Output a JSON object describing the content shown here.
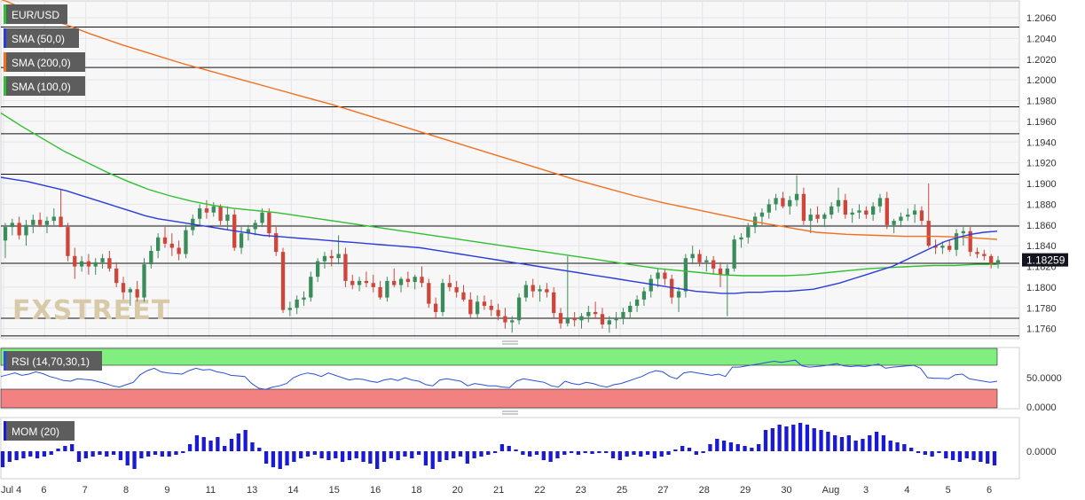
{
  "chart_data": {
    "type": "candlestick",
    "symbol": "EUR/USD",
    "indicators": {
      "sma50": {
        "label": "SMA (50,0)",
        "color": "#2b3bd9"
      },
      "sma200": {
        "label": "SMA (200,0)",
        "color": "#f07020"
      },
      "sma100": {
        "label": "SMA (100,0)",
        "color": "#2fbf2f"
      },
      "rsi": {
        "label": "RSI (14,70,30,1)",
        "color": "#2b4fd6",
        "overbought": 70,
        "oversold": 30,
        "ticks": [
          "50.0000",
          "0.0000"
        ]
      },
      "mom": {
        "label": "MOM (20)",
        "color": "#1a1ad6",
        "ticks": [
          "0.0000"
        ]
      }
    },
    "y_ticks": [
      "1.2060",
      "1.2040",
      "1.2020",
      "1.2000",
      "1.1980",
      "1.1960",
      "1.1940",
      "1.1920",
      "1.1900",
      "1.1880",
      "1.1860",
      "1.1840",
      "1.1820",
      "1.1800",
      "1.1780",
      "1.1760"
    ],
    "ylim": [
      1.1752,
      1.2072
    ],
    "last_price": "1.18259",
    "horizontal_levels": [
      1.2051,
      1.2012,
      1.1974,
      1.1948,
      1.1909,
      1.1859,
      1.1823,
      1.177,
      1.1753
    ],
    "x_labels": [
      "Jul 4",
      "6",
      "7",
      "8",
      "9",
      "11",
      "13",
      "14",
      "15",
      "16",
      "18",
      "20",
      "21",
      "22",
      "23",
      "25",
      "27",
      "28",
      "29",
      "30",
      "Aug",
      "3",
      "4",
      "5",
      "6"
    ],
    "candles": [
      [
        1.1845,
        1.1862,
        1.1828,
        1.1858
      ],
      [
        1.1858,
        1.1866,
        1.185,
        1.1862
      ],
      [
        1.1862,
        1.1868,
        1.1846,
        1.185
      ],
      [
        1.185,
        1.1865,
        1.184,
        1.186
      ],
      [
        1.186,
        1.187,
        1.1852,
        1.1865
      ],
      [
        1.1865,
        1.1872,
        1.1858,
        1.186
      ],
      [
        1.186,
        1.1868,
        1.1852,
        1.1864
      ],
      [
        1.1864,
        1.1876,
        1.186,
        1.1868
      ],
      [
        1.1868,
        1.1895,
        1.186,
        1.1858
      ],
      [
        1.1858,
        1.1862,
        1.1825,
        1.183
      ],
      [
        1.183,
        1.1838,
        1.1808,
        1.182
      ],
      [
        1.182,
        1.183,
        1.1815,
        1.1825
      ],
      [
        1.1825,
        1.1832,
        1.1812,
        1.182
      ],
      [
        1.182,
        1.1828,
        1.1812,
        1.1824
      ],
      [
        1.1824,
        1.1832,
        1.1818,
        1.1828
      ],
      [
        1.1828,
        1.1835,
        1.1815,
        1.1818
      ],
      [
        1.1818,
        1.1824,
        1.18,
        1.1804
      ],
      [
        1.1804,
        1.181,
        1.1788,
        1.1795
      ],
      [
        1.1795,
        1.18,
        1.1782,
        1.1798
      ],
      [
        1.1798,
        1.1806,
        1.1786,
        1.179
      ],
      [
        1.179,
        1.1828,
        1.1786,
        1.1822
      ],
      [
        1.1822,
        1.184,
        1.1818,
        1.1835
      ],
      [
        1.1835,
        1.1852,
        1.1828,
        1.1848
      ],
      [
        1.1848,
        1.1858,
        1.1838,
        1.1842
      ],
      [
        1.1842,
        1.1852,
        1.183,
        1.1838
      ],
      [
        1.1838,
        1.1845,
        1.1826,
        1.1832
      ],
      [
        1.1832,
        1.186,
        1.1828,
        1.1855
      ],
      [
        1.1855,
        1.187,
        1.185,
        1.1866
      ],
      [
        1.1866,
        1.188,
        1.186,
        1.1876
      ],
      [
        1.1876,
        1.1884,
        1.1866,
        1.1872
      ],
      [
        1.1872,
        1.1882,
        1.1868,
        1.1878
      ],
      [
        1.1878,
        1.188,
        1.186,
        1.1864
      ],
      [
        1.1864,
        1.1878,
        1.1855,
        1.187
      ],
      [
        1.187,
        1.1875,
        1.1835,
        1.1838
      ],
      [
        1.1838,
        1.1858,
        1.1832,
        1.1852
      ],
      [
        1.1852,
        1.186,
        1.1845,
        1.1856
      ],
      [
        1.1856,
        1.1865,
        1.185,
        1.1862
      ],
      [
        1.1862,
        1.1876,
        1.1858,
        1.1872
      ],
      [
        1.1872,
        1.1876,
        1.1848,
        1.1852
      ],
      [
        1.1852,
        1.1858,
        1.183,
        1.1834
      ],
      [
        1.1834,
        1.1838,
        1.1775,
        1.1778
      ],
      [
        1.1778,
        1.1786,
        1.1772,
        1.178
      ],
      [
        1.178,
        1.1792,
        1.1774,
        1.1788
      ],
      [
        1.1788,
        1.1796,
        1.1782,
        1.179
      ],
      [
        1.179,
        1.1815,
        1.1786,
        1.181
      ],
      [
        1.181,
        1.1828,
        1.1805,
        1.1825
      ],
      [
        1.1825,
        1.1834,
        1.1818,
        1.183
      ],
      [
        1.183,
        1.1836,
        1.182,
        1.1828
      ],
      [
        1.1828,
        1.185,
        1.1822,
        1.1832
      ],
      [
        1.1832,
        1.1838,
        1.18,
        1.1806
      ],
      [
        1.1806,
        1.1812,
        1.1798,
        1.1802
      ],
      [
        1.1802,
        1.181,
        1.1796,
        1.1806
      ],
      [
        1.1806,
        1.1815,
        1.18,
        1.1804
      ],
      [
        1.1804,
        1.1812,
        1.1795,
        1.18
      ],
      [
        1.18,
        1.1806,
        1.1788,
        1.179
      ],
      [
        1.179,
        1.181,
        1.1786,
        1.1806
      ],
      [
        1.1806,
        1.1818,
        1.18,
        1.1802
      ],
      [
        1.1802,
        1.181,
        1.1795,
        1.1808
      ],
      [
        1.1808,
        1.1815,
        1.18,
        1.1805
      ],
      [
        1.1805,
        1.1812,
        1.1798,
        1.181
      ],
      [
        1.181,
        1.182,
        1.18,
        1.1804
      ],
      [
        1.1804,
        1.1808,
        1.178,
        1.1784
      ],
      [
        1.1784,
        1.179,
        1.177,
        1.1776
      ],
      [
        1.1776,
        1.1808,
        1.1772,
        1.1804
      ],
      [
        1.1804,
        1.1812,
        1.1796,
        1.18
      ],
      [
        1.18,
        1.1806,
        1.179,
        1.1795
      ],
      [
        1.1795,
        1.1802,
        1.1786,
        1.1788
      ],
      [
        1.1788,
        1.1795,
        1.177,
        1.1774
      ],
      [
        1.1774,
        1.1792,
        1.177,
        1.1786
      ],
      [
        1.1786,
        1.1792,
        1.1778,
        1.1782
      ],
      [
        1.1782,
        1.1788,
        1.1772,
        1.1778
      ],
      [
        1.1778,
        1.1784,
        1.1768,
        1.1772
      ],
      [
        1.1772,
        1.178,
        1.176,
        1.1766
      ],
      [
        1.1766,
        1.1772,
        1.1756,
        1.1768
      ],
      [
        1.1768,
        1.1794,
        1.1764,
        1.179
      ],
      [
        1.179,
        1.1806,
        1.1786,
        1.1802
      ],
      [
        1.1802,
        1.1808,
        1.179,
        1.1796
      ],
      [
        1.1796,
        1.1802,
        1.1786,
        1.1798
      ],
      [
        1.1798,
        1.1804,
        1.179,
        1.1795
      ],
      [
        1.1795,
        1.18,
        1.177,
        1.1775
      ],
      [
        1.1775,
        1.178,
        1.176,
        1.1765
      ],
      [
        1.1765,
        1.183,
        1.1762,
        1.177
      ],
      [
        1.177,
        1.1776,
        1.1762,
        1.1768
      ],
      [
        1.1768,
        1.1775,
        1.176,
        1.1772
      ],
      [
        1.1772,
        1.1782,
        1.1766,
        1.1776
      ],
      [
        1.1776,
        1.1786,
        1.177,
        1.1774
      ],
      [
        1.1774,
        1.178,
        1.176,
        1.1764
      ],
      [
        1.1764,
        1.1772,
        1.1756,
        1.1768
      ],
      [
        1.1768,
        1.1776,
        1.176,
        1.177
      ],
      [
        1.177,
        1.178,
        1.1764,
        1.1776
      ],
      [
        1.1776,
        1.1786,
        1.177,
        1.1782
      ],
      [
        1.1782,
        1.1792,
        1.1776,
        1.1788
      ],
      [
        1.1788,
        1.18,
        1.1782,
        1.1796
      ],
      [
        1.1796,
        1.1812,
        1.179,
        1.1808
      ],
      [
        1.1808,
        1.1818,
        1.18,
        1.1814
      ],
      [
        1.1814,
        1.1818,
        1.1802,
        1.1808
      ],
      [
        1.1808,
        1.1812,
        1.1784,
        1.179
      ],
      [
        1.179,
        1.18,
        1.1776,
        1.1796
      ],
      [
        1.1796,
        1.1832,
        1.179,
        1.1828
      ],
      [
        1.1828,
        1.184,
        1.1822,
        1.1832
      ],
      [
        1.1832,
        1.1836,
        1.182,
        1.1824
      ],
      [
        1.1824,
        1.183,
        1.1815,
        1.1826
      ],
      [
        1.1826,
        1.183,
        1.1812,
        1.1818
      ],
      [
        1.1818,
        1.1824,
        1.18,
        1.1812
      ],
      [
        1.1812,
        1.1822,
        1.1772,
        1.1818
      ],
      [
        1.1818,
        1.185,
        1.1815,
        1.1846
      ],
      [
        1.1846,
        1.1852,
        1.1838,
        1.1848
      ],
      [
        1.1848,
        1.1862,
        1.1842,
        1.1858
      ],
      [
        1.1858,
        1.1872,
        1.1852,
        1.1868
      ],
      [
        1.1868,
        1.1876,
        1.186,
        1.1872
      ],
      [
        1.1872,
        1.1885,
        1.1866,
        1.188
      ],
      [
        1.188,
        1.189,
        1.1874,
        1.1886
      ],
      [
        1.1886,
        1.1892,
        1.1876,
        1.1878
      ],
      [
        1.1878,
        1.1888,
        1.187,
        1.1884
      ],
      [
        1.1884,
        1.1908,
        1.1878,
        1.189
      ],
      [
        1.189,
        1.1896,
        1.186,
        1.1864
      ],
      [
        1.1864,
        1.1876,
        1.1852,
        1.187
      ],
      [
        1.187,
        1.1878,
        1.1862,
        1.1866
      ],
      [
        1.1866,
        1.1872,
        1.1858,
        1.187
      ],
      [
        1.187,
        1.1882,
        1.1866,
        1.1878
      ],
      [
        1.1878,
        1.1896,
        1.1872,
        1.1884
      ],
      [
        1.1884,
        1.189,
        1.1866,
        1.187
      ],
      [
        1.187,
        1.1876,
        1.1862,
        1.1872
      ],
      [
        1.1872,
        1.188,
        1.1866,
        1.1874
      ],
      [
        1.1874,
        1.1878,
        1.1866,
        1.187
      ],
      [
        1.187,
        1.1882,
        1.1864,
        1.1878
      ],
      [
        1.1878,
        1.189,
        1.1872,
        1.1886
      ],
      [
        1.1886,
        1.1892,
        1.1856,
        1.186
      ],
      [
        1.186,
        1.1866,
        1.1852,
        1.1864
      ],
      [
        1.1864,
        1.1872,
        1.1858,
        1.1868
      ],
      [
        1.1868,
        1.1876,
        1.1864,
        1.187
      ],
      [
        1.187,
        1.188,
        1.1862,
        1.1874
      ],
      [
        1.1874,
        1.1878,
        1.186,
        1.1864
      ],
      [
        1.1864,
        1.19,
        1.1838,
        1.184
      ],
      [
        1.184,
        1.1846,
        1.1832,
        1.1838
      ],
      [
        1.1838,
        1.1844,
        1.1832,
        1.184
      ],
      [
        1.184,
        1.1846,
        1.1834,
        1.1836
      ],
      [
        1.1836,
        1.1856,
        1.183,
        1.1852
      ],
      [
        1.1852,
        1.1858,
        1.184,
        1.1854
      ],
      [
        1.1854,
        1.1858,
        1.183,
        1.1834
      ],
      [
        1.1834,
        1.1838,
        1.1828,
        1.1832
      ],
      [
        1.1832,
        1.1836,
        1.1826,
        1.183
      ],
      [
        1.183,
        1.1832,
        1.1818,
        1.1822
      ],
      [
        1.1822,
        1.183,
        1.1818,
        1.1826
      ]
    ],
    "sma50_values": [
      1.1906,
      1.1904,
      1.1902,
      1.1899,
      1.1896,
      1.1893,
      1.1889,
      1.1885,
      1.1881,
      1.1877,
      1.1873,
      1.1869,
      1.1866,
      1.1864,
      1.1862,
      1.186,
      1.1858,
      1.1856,
      1.1854,
      1.1852,
      1.185,
      1.1849,
      1.1848,
      1.1847,
      1.1846,
      1.1845,
      1.1844,
      1.1843,
      1.1842,
      1.1841,
      1.184,
      1.1839,
      1.1838,
      1.1836,
      1.1834,
      1.1832,
      1.183,
      1.1828,
      1.1826,
      1.1824,
      1.1822,
      1.182,
      1.1818,
      1.1816,
      1.1814,
      1.1812,
      1.181,
      1.1808,
      1.1806,
      1.1804,
      1.1802,
      1.18,
      1.1798,
      1.1796,
      1.1795,
      1.1794,
      1.1794,
      1.1795,
      1.1795,
      1.1796,
      1.1796,
      1.1797,
      1.1798,
      1.1801,
      1.1804,
      1.1808,
      1.1812,
      1.1816,
      1.182,
      1.1826,
      1.1832,
      1.1838,
      1.1844,
      1.1848,
      1.1851,
      1.1853,
      1.1854
    ],
    "sma200_values": [
      1.2078,
      1.2066,
      1.2055,
      1.2044,
      1.2034,
      1.2025,
      1.2016,
      1.2008,
      1.2,
      1.1992,
      1.1984,
      1.1976,
      1.1967,
      1.1958,
      1.1949,
      1.194,
      1.1931,
      1.1922,
      1.1913,
      1.1904,
      1.1896,
      1.1888,
      1.1881,
      1.1875,
      1.1869,
      1.1863,
      1.1858,
      1.1853,
      1.1851,
      1.185,
      1.1849,
      1.1849,
      1.1848,
      1.1846
    ],
    "sma100_values": [
      1.1968,
      1.1955,
      1.1943,
      1.1931,
      1.1921,
      1.1911,
      1.1902,
      1.1894,
      1.1888,
      1.1883,
      1.1879,
      1.1876,
      1.1874,
      1.1872,
      1.1869,
      1.1866,
      1.1863,
      1.186,
      1.1857,
      1.1854,
      1.1851,
      1.1848,
      1.1845,
      1.1842,
      1.1839,
      1.1836,
      1.1833,
      1.183,
      1.1827,
      1.1824,
      1.1821,
      1.1818,
      1.1816,
      1.1814,
      1.1812,
      1.1811,
      1.1811,
      1.1811,
      1.1812,
      1.1814,
      1.1816,
      1.1818,
      1.1819,
      1.182,
      1.1821,
      1.1821,
      1.1822,
      1.1822
    ],
    "rsi_values": [
      52,
      55,
      58,
      54,
      56,
      60,
      57,
      52,
      49,
      45,
      44,
      48,
      47,
      46,
      43,
      40,
      36,
      34,
      38,
      42,
      55,
      62,
      66,
      60,
      58,
      57,
      56,
      62,
      66,
      63,
      64,
      60,
      58,
      54,
      53,
      52,
      40,
      32,
      30,
      34,
      36,
      40,
      50,
      55,
      58,
      56,
      52,
      58,
      54,
      50,
      46,
      48,
      47,
      44,
      42,
      46,
      48,
      45,
      50,
      46,
      44,
      38,
      36,
      46,
      48,
      46,
      44,
      36,
      40,
      38,
      36,
      36,
      34,
      33,
      44,
      48,
      46,
      44,
      42,
      36,
      34,
      44,
      40,
      38,
      42,
      40,
      36,
      34,
      38,
      40,
      44,
      48,
      52,
      58,
      62,
      60,
      52,
      48,
      58,
      60,
      58,
      56,
      54,
      56,
      52,
      68,
      68,
      70,
      72,
      74,
      76,
      78,
      76,
      78,
      80,
      70,
      68,
      69,
      70,
      72,
      74,
      70,
      69,
      70,
      69,
      71,
      73,
      66,
      68,
      69,
      70,
      71,
      66,
      50,
      49,
      49,
      48,
      55,
      56,
      48,
      46,
      44,
      42,
      44
    ],
    "mom_values": [
      -0.0018,
      -0.0012,
      -0.001,
      -0.0008,
      -0.0006,
      -0.0008,
      -0.0006,
      -0.0004,
      0.0003,
      0.0006,
      0.0008,
      -0.0012,
      -0.0008,
      -0.0006,
      -0.0004,
      -0.0006,
      -0.0004,
      -0.001,
      -0.0016,
      -0.002,
      -0.0008,
      -0.0006,
      -0.0004,
      -0.0006,
      -0.0006,
      -0.0004,
      -0.0002,
      0.0008,
      0.0018,
      0.0016,
      0.0012,
      0.0016,
      0.0006,
      0.0014,
      0.002,
      0.0024,
      0.001,
      0.0004,
      -0.0014,
      -0.0018,
      -0.002,
      -0.0016,
      -0.0012,
      -0.0008,
      -0.0006,
      -0.0004,
      -0.0008,
      -0.001,
      -0.0008,
      -0.0012,
      -0.001,
      -0.0008,
      -0.0012,
      -0.0014,
      -0.002,
      -0.0012,
      -0.0008,
      -0.001,
      -0.0006,
      -0.0008,
      -0.0004,
      -0.0016,
      -0.002,
      -0.0012,
      -0.001,
      -0.0008,
      -0.0006,
      -0.0014,
      -0.0008,
      -0.0006,
      -0.0004,
      -0.0002,
      0.0008,
      0.0006,
      0.0002,
      -0.0004,
      -0.0006,
      -0.0004,
      -0.001,
      -0.0012,
      -0.0008,
      -0.0004,
      -0.0002,
      -0.0004,
      -0.0002,
      -0.0003,
      -0.0002,
      -0.0002,
      -0.0008,
      -0.001,
      -0.0006,
      -0.0004,
      -0.0006,
      -0.0004,
      -0.0008,
      -0.0006,
      -0.0004,
      0.0002,
      0.0006,
      0.0004,
      -0.0004,
      -0.0002,
      0.0008,
      0.0014,
      0.0012,
      0.001,
      0.0008,
      0.0006,
      0.0004,
      0.0008,
      0.0024,
      0.0026,
      0.003,
      0.0028,
      0.003,
      0.0032,
      0.003,
      0.0026,
      0.0024,
      0.0022,
      0.0018,
      0.0016,
      0.0018,
      0.0012,
      0.0014,
      0.0018,
      0.0022,
      0.0018,
      0.0012,
      0.001,
      0.0008,
      0.0004,
      -0.0002,
      -0.0004,
      -0.0006,
      -0.0002,
      -0.0008,
      -0.001,
      -0.0012,
      -0.0008,
      -0.001,
      -0.0012,
      -0.0014,
      -0.0016
    ]
  },
  "brand": {
    "logo_text": "FXSTREET"
  }
}
